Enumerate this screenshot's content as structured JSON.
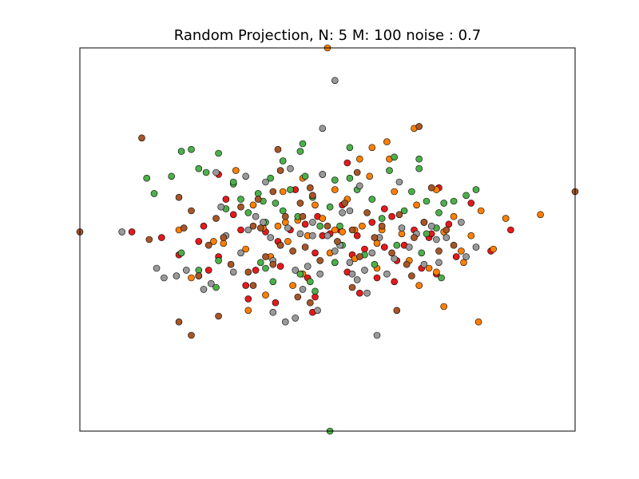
{
  "chart_data": {
    "type": "scatter",
    "title": "Random Projection, N: 5 M: 100 noise : 0.7",
    "xlabel": "",
    "ylabel": "",
    "axis_ticks": "none",
    "grid": false,
    "legend": "none",
    "xlim": [
      -1.0,
      1.0
    ],
    "ylim": [
      -1.0,
      1.0
    ],
    "series": [
      {
        "color": "#e41a1c",
        "points": [
          [
            -0.79,
            0.04
          ],
          [
            -0.67,
            0.01
          ],
          [
            -0.6,
            -0.08
          ],
          [
            -0.52,
            -0.01
          ],
          [
            -0.5,
            0.07
          ],
          [
            -0.48,
            -0.16
          ],
          [
            -0.44,
            -0.09
          ],
          [
            -0.38,
            0.13
          ],
          [
            -0.33,
            -0.24
          ],
          [
            -0.32,
            -0.31
          ],
          [
            -0.29,
            -0.16
          ],
          [
            -0.25,
            0.04
          ],
          [
            -0.21,
            -0.33
          ],
          [
            -0.19,
            -0.14
          ],
          [
            -0.15,
            0.05
          ],
          [
            -0.13,
            0.26
          ],
          [
            -0.09,
            0.08
          ],
          [
            -0.05,
            -0.07
          ],
          [
            -0.04,
            0.12
          ],
          [
            -0.02,
            0.02
          ],
          [
            0.01,
            0.03
          ],
          [
            0.03,
            -0.12
          ],
          [
            0.05,
            0.05
          ],
          [
            0.08,
            -0.17
          ],
          [
            0.1,
            -0.08
          ],
          [
            0.12,
            0.02
          ],
          [
            0.15,
            -0.05
          ],
          [
            0.18,
            0.09
          ],
          [
            0.2,
            -0.2
          ],
          [
            0.23,
            -0.04
          ],
          [
            0.26,
            0.12
          ],
          [
            0.28,
            -0.11
          ],
          [
            0.31,
            -0.03
          ],
          [
            0.35,
            0.05
          ],
          [
            0.38,
            -0.15
          ],
          [
            0.41,
            0.01
          ],
          [
            0.44,
            -0.18
          ],
          [
            0.49,
            0.08
          ],
          [
            0.52,
            -0.09
          ],
          [
            0.58,
            0.19
          ],
          [
            0.66,
            -0.06
          ],
          [
            0.74,
            0.05
          ],
          [
            -0.41,
            0.21
          ],
          [
            -0.2,
            -0.01
          ],
          [
            0.06,
            0.18
          ],
          [
            -0.08,
            -0.2
          ],
          [
            0.13,
            -0.28
          ],
          [
            0.27,
            -0.22
          ],
          [
            -0.35,
            0.05
          ],
          [
            -0.05,
            -0.3
          ],
          [
            0.45,
            0.27
          ],
          [
            0.23,
            0.16
          ],
          [
            0.42,
            0.03
          ],
          [
            -0.06,
            -0.38
          ],
          [
            -0.44,
            0.34
          ],
          [
            0.08,
            0.4
          ]
        ]
      },
      {
        "color": "#ff7f00",
        "points": [
          [
            -0.42,
            -0.02
          ],
          [
            -0.33,
            -0.05
          ],
          [
            -0.3,
            0.18
          ],
          [
            -0.26,
            0.06
          ],
          [
            -0.23,
            -0.09
          ],
          [
            -0.2,
            0.07
          ],
          [
            -0.18,
            0.25
          ],
          [
            -0.16,
            -0.01
          ],
          [
            -0.12,
            0.1
          ],
          [
            -0.1,
            -0.18
          ],
          [
            -0.08,
            0.02
          ],
          [
            -0.05,
            0.18
          ],
          [
            -0.02,
            0.11
          ],
          [
            0.01,
            -0.07
          ],
          [
            0.03,
            0.26
          ],
          [
            0.06,
            0.04
          ],
          [
            0.08,
            0.21
          ],
          [
            0.11,
            -0.1
          ],
          [
            0.14,
            0.07
          ],
          [
            0.17,
            0.33
          ],
          [
            0.2,
            -0.02
          ],
          [
            0.22,
            0.05
          ],
          [
            0.25,
            0.42
          ],
          [
            0.27,
            0.25
          ],
          [
            0.3,
            0.03
          ],
          [
            0.33,
            -0.11
          ],
          [
            0.36,
            0.18
          ],
          [
            0.39,
            0.09
          ],
          [
            0.41,
            -0.15
          ],
          [
            0.44,
            0.26
          ],
          [
            0.47,
            0.04
          ],
          [
            0.51,
            0.12
          ],
          [
            0.54,
            -0.06
          ],
          [
            0.58,
            0.02
          ],
          [
            0.62,
            0.15
          ],
          [
            0.67,
            -0.05
          ],
          [
            0.72,
            0.11
          ],
          [
            0.86,
            0.13
          ],
          [
            0.55,
            -0.12
          ],
          [
            0.47,
            -0.35
          ],
          [
            0.18,
            0.48
          ],
          [
            0.35,
            0.58
          ],
          [
            0.24,
            0.51
          ],
          [
            0.2,
            -0.15
          ],
          [
            -0.14,
            -0.24
          ],
          [
            -0.25,
            -0.29
          ],
          [
            -0.32,
            -0.37
          ],
          [
            0.37,
            -0.24
          ],
          [
            0.44,
            -0.17
          ],
          [
            0.61,
            -0.43
          ],
          [
            -0.1,
            0.32
          ],
          [
            -0.55,
            -0.2
          ],
          [
            -0.6,
            0.05
          ],
          [
            -0.46,
            -0.01
          ],
          [
            0.11,
            0.05
          ],
          [
            0.13,
            0.42
          ],
          [
            -0.37,
            0.36
          ],
          [
            -0.17,
            0.09
          ],
          [
            0.03,
            0.05
          ],
          [
            0.0,
            1.0
          ]
        ]
      },
      {
        "color": "#4daf4a",
        "points": [
          [
            -0.73,
            0.32
          ],
          [
            -0.7,
            0.24
          ],
          [
            -0.63,
            0.33
          ],
          [
            -0.59,
            0.46
          ],
          [
            -0.55,
            0.47
          ],
          [
            -0.52,
            0.37
          ],
          [
            -0.49,
            0.35
          ],
          [
            -0.44,
            0.45
          ],
          [
            -0.41,
            0.16
          ],
          [
            -0.38,
            0.29
          ],
          [
            -0.35,
            0.21
          ],
          [
            -0.32,
            0.14
          ],
          [
            -0.28,
            0.24
          ],
          [
            -0.25,
            0.09
          ],
          [
            -0.23,
            0.32
          ],
          [
            -0.21,
            0.19
          ],
          [
            -0.18,
            0.41
          ],
          [
            -0.15,
            0.26
          ],
          [
            -0.12,
            0.12
          ],
          [
            -0.09,
            0.33
          ],
          [
            -0.06,
            0.22
          ],
          [
            -0.03,
            0.07
          ],
          [
            0.01,
            0.17
          ],
          [
            0.03,
            0.31
          ],
          [
            0.06,
            -0.03
          ],
          [
            0.09,
            0.48
          ],
          [
            0.12,
            0.26
          ],
          [
            0.15,
            -0.08
          ],
          [
            0.18,
            0.21
          ],
          [
            0.22,
            0.11
          ],
          [
            0.25,
            0.36
          ],
          [
            0.28,
            -0.03
          ],
          [
            0.31,
            0.15
          ],
          [
            0.34,
            0.25
          ],
          [
            0.37,
            0.37
          ],
          [
            0.4,
            0.2
          ],
          [
            0.44,
            0.06
          ],
          [
            0.47,
            0.19
          ],
          [
            0.51,
            0.2
          ],
          [
            0.56,
            0.23
          ],
          [
            0.6,
            0.26
          ],
          [
            -0.38,
            0.3
          ],
          [
            -0.44,
            -0.11
          ],
          [
            -0.45,
            -0.25
          ],
          [
            -0.59,
            -0.07
          ],
          [
            -0.52,
            -0.16
          ],
          [
            -0.27,
            -0.12
          ],
          [
            -0.25,
            -0.15
          ],
          [
            -0.22,
            -0.22
          ],
          [
            -0.11,
            -0.18
          ],
          [
            -0.07,
            -0.22
          ],
          [
            -0.05,
            -0.27
          ],
          [
            0.03,
            -0.12
          ],
          [
            0.19,
            -0.13
          ],
          [
            0.27,
            0.43
          ],
          [
            -0.11,
            0.46
          ],
          [
            0.37,
            0.42
          ],
          [
            0.38,
            -0.07
          ],
          [
            0.4,
            0.03
          ],
          [
            0.45,
            0.14
          ],
          [
            0.46,
            -0.2
          ],
          [
            -0.18,
            0.15
          ],
          [
            0.05,
            0.07
          ],
          [
            -0.02,
            0.34
          ],
          [
            0.09,
            0.32
          ],
          [
            -0.1,
            0.5
          ],
          [
            -0.26,
            0.2
          ],
          [
            -0.06,
            0.23
          ],
          [
            0.01,
            -1.0
          ]
        ]
      },
      {
        "color": "#999999",
        "points": [
          [
            -0.83,
            0.04
          ],
          [
            -0.69,
            -0.15
          ],
          [
            -0.66,
            -0.2
          ],
          [
            -0.61,
            -0.19
          ],
          [
            -0.57,
            -0.16
          ],
          [
            -0.52,
            -0.19
          ],
          [
            -0.5,
            -0.26
          ],
          [
            -0.47,
            -0.23
          ],
          [
            -0.43,
            0.17
          ],
          [
            -0.38,
            -0.17
          ],
          [
            -0.35,
            -0.07
          ],
          [
            -0.32,
            0.05
          ],
          [
            -0.29,
            0.12
          ],
          [
            -0.26,
            0.09
          ],
          [
            -0.22,
            -0.11
          ],
          [
            -0.19,
            -0.03
          ],
          [
            -0.16,
            0.06
          ],
          [
            -0.13,
            -0.16
          ],
          [
            -0.11,
            0.03
          ],
          [
            -0.08,
            -0.14
          ],
          [
            -0.06,
            0.09
          ],
          [
            -0.03,
            -0.18
          ],
          [
            0.0,
            0.02
          ],
          [
            0.03,
            -0.06
          ],
          [
            0.06,
            0.14
          ],
          [
            0.09,
            -0.12
          ],
          [
            0.12,
            -0.21
          ],
          [
            0.15,
            -0.16
          ],
          [
            0.18,
            -0.07
          ],
          [
            0.21,
            0.01
          ],
          [
            0.24,
            -0.18
          ],
          [
            0.27,
            -0.1
          ],
          [
            0.3,
            0.06
          ],
          [
            0.33,
            -0.04
          ],
          [
            0.36,
            0.03
          ],
          [
            0.39,
            -0.13
          ],
          [
            0.42,
            0.07
          ],
          [
            0.45,
            -0.12
          ],
          [
            0.48,
            0.01
          ],
          [
            0.54,
            0.09
          ],
          [
            0.6,
            -0.04
          ],
          [
            -0.02,
            0.34
          ],
          [
            0.2,
            -0.5
          ],
          [
            0.16,
            -0.28
          ],
          [
            -0.13,
            -0.41
          ],
          [
            -0.22,
            -0.38
          ],
          [
            -0.17,
            -0.43
          ],
          [
            -0.1,
            -0.26
          ],
          [
            -0.33,
            0.33
          ],
          [
            -0.25,
            0.3
          ],
          [
            0.03,
            0.83
          ],
          [
            -0.02,
            0.58
          ],
          [
            0.13,
            0.28
          ],
          [
            -0.06,
            0.02
          ],
          [
            -0.15,
            0.37
          ],
          [
            0.05,
            -0.03
          ],
          [
            0.29,
            0.3
          ],
          [
            -0.45,
            0.35
          ],
          [
            0.1,
            -0.18
          ],
          [
            -0.41,
            0.02
          ],
          [
            0.56,
            -0.09
          ],
          [
            -0.04,
            -0.37
          ],
          [
            -0.23,
            0.01
          ],
          [
            0.44,
            0.0
          ],
          [
            0.09,
            0.15
          ]
        ]
      },
      {
        "color": "#a65628",
        "points": [
          [
            -1.0,
            0.04
          ],
          [
            -0.75,
            0.53
          ],
          [
            -0.72,
            0.0
          ],
          [
            -0.6,
            0.22
          ],
          [
            -0.58,
            0.06
          ],
          [
            -0.55,
            0.15
          ],
          [
            -0.52,
            -0.19
          ],
          [
            -0.48,
            -0.03
          ],
          [
            -0.45,
            0.11
          ],
          [
            -0.42,
            0.01
          ],
          [
            -0.39,
            -0.13
          ],
          [
            -0.35,
            0.17
          ],
          [
            -0.32,
            -0.17
          ],
          [
            -0.3,
            0.07
          ],
          [
            -0.28,
            0.21
          ],
          [
            -0.25,
            -0.09
          ],
          [
            -0.22,
            0.25
          ],
          [
            -0.19,
            -0.03
          ],
          [
            -0.17,
            0.12
          ],
          [
            -0.14,
            -0.06
          ],
          [
            -0.11,
            0.19
          ],
          [
            -0.09,
            -0.04
          ],
          [
            -0.06,
            0.23
          ],
          [
            -0.03,
            -0.11
          ],
          [
            0.0,
            0.07
          ],
          [
            0.04,
            -0.01
          ],
          [
            0.07,
            0.19
          ],
          [
            0.1,
            0.05
          ],
          [
            0.13,
            -0.09
          ],
          [
            0.16,
            0.14
          ],
          [
            0.19,
            0.01
          ],
          [
            0.22,
            0.07
          ],
          [
            0.26,
            -0.07
          ],
          [
            0.29,
            0.13
          ],
          [
            0.32,
            -0.13
          ],
          [
            0.35,
            0.01
          ],
          [
            0.39,
            0.09
          ],
          [
            0.42,
            0.27
          ],
          [
            0.45,
            -0.06
          ],
          [
            0.48,
            0.05
          ],
          [
            0.51,
            -0.03
          ],
          [
            1.0,
            0.25
          ],
          [
            -0.55,
            -0.5
          ],
          [
            -0.6,
            -0.43
          ],
          [
            -0.22,
            -0.13
          ],
          [
            -0.12,
            -0.3
          ],
          [
            -0.07,
            -0.33
          ],
          [
            0.1,
            -0.25
          ],
          [
            0.28,
            -0.37
          ],
          [
            0.34,
            -0.19
          ],
          [
            0.37,
            0.59
          ],
          [
            -0.07,
            0.27
          ],
          [
            -0.19,
            0.36
          ],
          [
            -0.2,
            0.47
          ],
          [
            -0.1,
            0.12
          ],
          [
            -0.3,
            -0.24
          ],
          [
            0.12,
            0.35
          ],
          [
            -0.27,
            0.06
          ],
          [
            -0.44,
            -0.4
          ]
        ]
      }
    ]
  }
}
